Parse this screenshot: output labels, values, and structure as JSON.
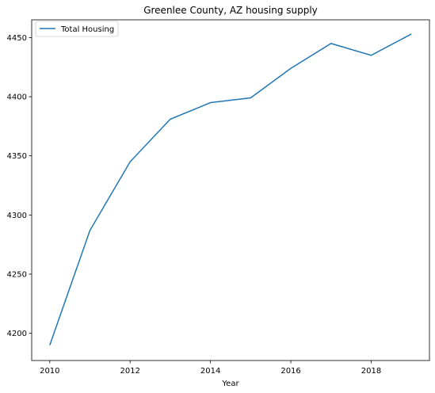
{
  "chart_data": {
    "type": "line",
    "title": "Greenlee County, AZ housing supply",
    "xlabel": "Year",
    "ylabel": "",
    "x": [
      2010,
      2011,
      2012,
      2013,
      2014,
      2015,
      2016,
      2017,
      2018,
      2019
    ],
    "series": [
      {
        "name": "Total Housing",
        "color": "#1f77b4",
        "values": [
          4190,
          4287,
          4345,
          4381,
          4395,
          4399,
          4424,
          4445,
          4435,
          4453
        ]
      }
    ],
    "xlim": [
      2009.55,
      2019.45
    ],
    "ylim": [
      4177,
      4465
    ],
    "xticks": [
      2010,
      2012,
      2014,
      2016,
      2018
    ],
    "yticks": [
      4200,
      4250,
      4300,
      4350,
      4400,
      4450
    ],
    "grid": false,
    "legend_position": "top-left"
  }
}
